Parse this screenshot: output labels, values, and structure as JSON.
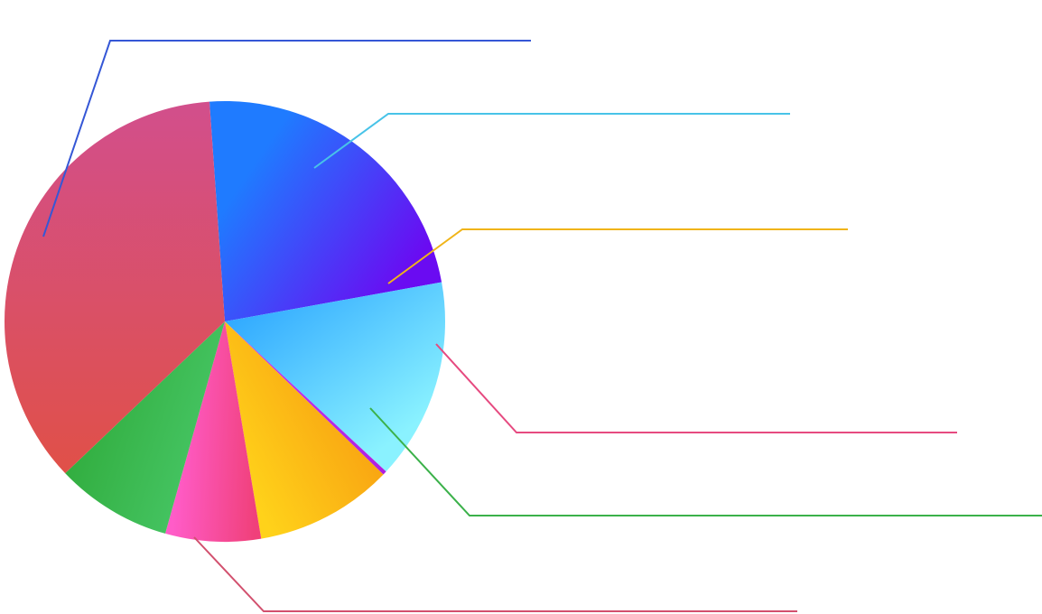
{
  "chart_data": {
    "type": "pie",
    "title": "",
    "legend": "none",
    "slices": [
      {
        "value": 0.2326,
        "color_start": "#1F7BFF",
        "color_end": "#6A0BF2",
        "leader_color": "#3557D6"
      },
      {
        "value": 0.1478,
        "color_start": "#2FA8FF",
        "color_end": "#8AF2FF",
        "leader_color": "#48C3E8"
      },
      {
        "value": 0.0029,
        "color_start": "#C43CF0",
        "color_end": "#B01EE0",
        "leader_color": "#B01EE0"
      },
      {
        "value": 0.1014,
        "color_start": "#FFD21A",
        "color_end": "#F79A10",
        "leader_color": "#F0B418"
      },
      {
        "value": 0.07,
        "color_start": "#FF5CC8",
        "color_end": "#F0407A",
        "leader_color": "#E64A80"
      },
      {
        "value": 0.0854,
        "color_start": "#2FAA3A",
        "color_end": "#48C868",
        "leader_color": "#3BB14A"
      },
      {
        "value": 0.3599,
        "color_start": "#D24F8C",
        "color_end": "#E05048",
        "leader_color": "#D2506E"
      }
    ]
  }
}
